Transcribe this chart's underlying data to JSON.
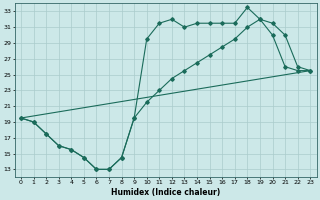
{
  "xlabel": "Humidex (Indice chaleur)",
  "bg_color": "#cce8e8",
  "grid_color": "#aacccc",
  "line_color": "#1a6b5a",
  "xlim": [
    -0.5,
    23.5
  ],
  "ylim": [
    12,
    34
  ],
  "xticks": [
    0,
    1,
    2,
    3,
    4,
    5,
    6,
    7,
    8,
    9,
    10,
    11,
    12,
    13,
    14,
    15,
    16,
    17,
    18,
    19,
    20,
    21,
    22,
    23
  ],
  "yticks": [
    13,
    15,
    17,
    19,
    21,
    23,
    25,
    27,
    29,
    31,
    33
  ],
  "line1_x": [
    0,
    1,
    2,
    3,
    4,
    5,
    6,
    7,
    8,
    9,
    10,
    11,
    12,
    13,
    14,
    15,
    16,
    17,
    18,
    19,
    20,
    21,
    22,
    23
  ],
  "line1_y": [
    19.5,
    19.0,
    17.5,
    16.0,
    15.5,
    14.5,
    13.0,
    13.0,
    14.5,
    19.5,
    29.5,
    31.5,
    32.0,
    31.0,
    31.5,
    31.5,
    31.5,
    31.5,
    33.5,
    32.0,
    30.0,
    26.0,
    25.5,
    25.5
  ],
  "line2_x": [
    0,
    23
  ],
  "line2_y": [
    19.5,
    25.5
  ],
  "line3_x": [
    0,
    1,
    2,
    3,
    4,
    5,
    6,
    7,
    8,
    9,
    10,
    11,
    12,
    13,
    14,
    15,
    16,
    17,
    18,
    19,
    20,
    21,
    22,
    23
  ],
  "line3_y": [
    19.5,
    19.0,
    17.5,
    16.0,
    15.5,
    14.5,
    13.0,
    13.0,
    14.5,
    19.5,
    21.5,
    23.0,
    24.5,
    25.5,
    26.5,
    27.5,
    28.5,
    29.5,
    31.0,
    32.0,
    31.5,
    30.0,
    26.0,
    25.5
  ]
}
